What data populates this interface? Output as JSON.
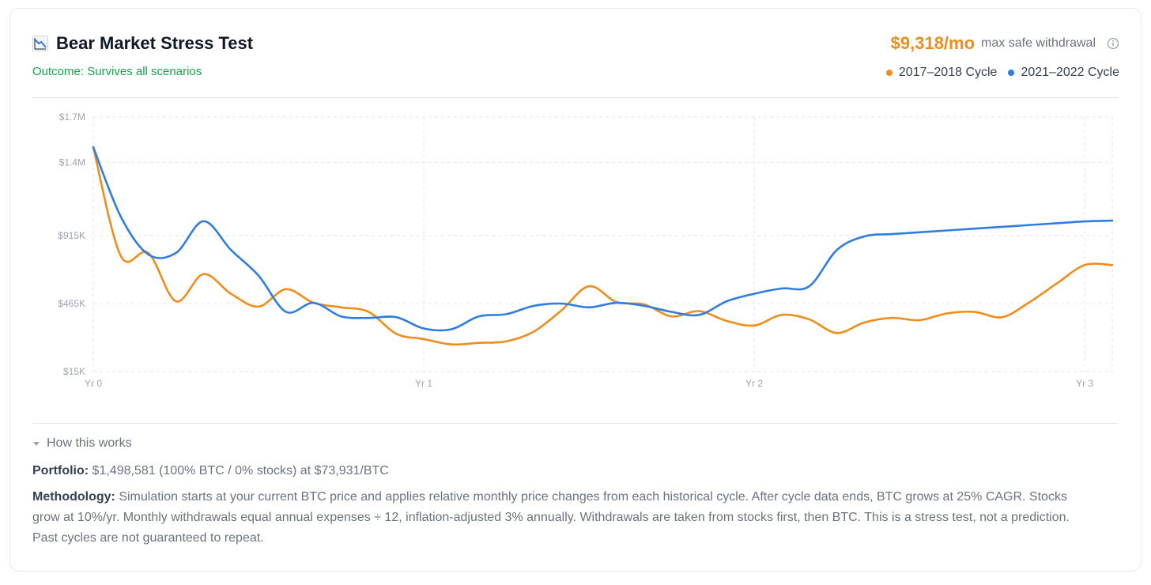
{
  "header": {
    "title": "Bear Market Stress Test",
    "outcome": "Outcome: Survives all scenarios",
    "amount": "$9,318/mo",
    "amount_label": "max safe withdrawal"
  },
  "colors": {
    "orange": "#f08c1a",
    "blue": "#2f7de1",
    "green": "#16a34a"
  },
  "icons": {
    "title": "chart-decreasing-icon",
    "info": "info-icon",
    "caret": "caret-down-icon"
  },
  "legend": [
    {
      "label": "2017–2018 Cycle",
      "color": "#f08c1a"
    },
    {
      "label": "2021–2022 Cycle",
      "color": "#2f7de1"
    }
  ],
  "chart_data": {
    "type": "line",
    "x_ticks": [
      {
        "value": 0,
        "label": "Yr 0"
      },
      {
        "value": 12,
        "label": "Yr 1"
      },
      {
        "value": 24,
        "label": "Yr 2"
      },
      {
        "value": 36,
        "label": "Yr 3"
      }
    ],
    "y_ticks": [
      {
        "value": 15000,
        "label": "$15K"
      },
      {
        "value": 465000,
        "label": "$465K"
      },
      {
        "value": 915000,
        "label": "$915K"
      },
      {
        "value": 1400000,
        "label": "$1.4M"
      },
      {
        "value": 1700000,
        "label": "$1.7M"
      }
    ],
    "xlim": [
      0,
      37
    ],
    "ylim": [
      15000,
      1700000
    ],
    "grid": true,
    "legend_position": "top-right",
    "series": [
      {
        "name": "2017–2018 Cycle",
        "color": "#f08c1a",
        "points": [
          [
            0,
            1500000
          ],
          [
            1,
            780000
          ],
          [
            2,
            800000
          ],
          [
            3,
            480000
          ],
          [
            4,
            660000
          ],
          [
            5,
            530000
          ],
          [
            6,
            445000
          ],
          [
            7,
            560000
          ],
          [
            8,
            470000
          ],
          [
            9,
            440000
          ],
          [
            10,
            410000
          ],
          [
            11,
            265000
          ],
          [
            12,
            230000
          ],
          [
            13,
            195000
          ],
          [
            14,
            205000
          ],
          [
            15,
            215000
          ],
          [
            16,
            280000
          ],
          [
            17,
            420000
          ],
          [
            18,
            580000
          ],
          [
            19,
            475000
          ],
          [
            20,
            460000
          ],
          [
            21,
            380000
          ],
          [
            22,
            415000
          ],
          [
            23,
            350000
          ],
          [
            24,
            320000
          ],
          [
            25,
            390000
          ],
          [
            26,
            360000
          ],
          [
            27,
            270000
          ],
          [
            28,
            340000
          ],
          [
            29,
            370000
          ],
          [
            30,
            355000
          ],
          [
            31,
            400000
          ],
          [
            32,
            410000
          ],
          [
            33,
            375000
          ],
          [
            34,
            475000
          ],
          [
            35,
            600000
          ],
          [
            36,
            720000
          ],
          [
            37,
            720000
          ]
        ]
      },
      {
        "name": "2021–2022 Cycle",
        "color": "#2f7de1",
        "points": [
          [
            0,
            1500000
          ],
          [
            1,
            1040000
          ],
          [
            2,
            790000
          ],
          [
            3,
            800000
          ],
          [
            4,
            1010000
          ],
          [
            5,
            820000
          ],
          [
            6,
            650000
          ],
          [
            7,
            410000
          ],
          [
            8,
            470000
          ],
          [
            9,
            380000
          ],
          [
            10,
            370000
          ],
          [
            11,
            375000
          ],
          [
            12,
            300000
          ],
          [
            13,
            295000
          ],
          [
            14,
            380000
          ],
          [
            15,
            395000
          ],
          [
            16,
            450000
          ],
          [
            17,
            465000
          ],
          [
            18,
            440000
          ],
          [
            19,
            470000
          ],
          [
            20,
            450000
          ],
          [
            21,
            410000
          ],
          [
            22,
            390000
          ],
          [
            23,
            480000
          ],
          [
            24,
            530000
          ],
          [
            25,
            565000
          ],
          [
            26,
            580000
          ],
          [
            27,
            820000
          ],
          [
            28,
            910000
          ],
          [
            29,
            925000
          ],
          [
            30,
            937000
          ],
          [
            31,
            949000
          ],
          [
            32,
            961000
          ],
          [
            33,
            973000
          ],
          [
            34,
            985000
          ],
          [
            35,
            997000
          ],
          [
            36,
            1009000
          ],
          [
            37,
            1014000
          ]
        ]
      }
    ]
  },
  "how": {
    "label": "How this works"
  },
  "portfolio": {
    "label": "Portfolio:",
    "text": "$1,498,581 (100% BTC / 0% stocks) at $73,931/BTC"
  },
  "methodology": {
    "label": "Methodology:",
    "text": "Simulation starts at your current BTC price and applies relative monthly price changes from each historical cycle. After cycle data ends, BTC grows at 25% CAGR. Stocks grow at 10%/yr. Monthly withdrawals equal annual expenses ÷ 12, inflation-adjusted 3% annually. Withdrawals are taken from stocks first, then BTC. This is a stress test, not a prediction. Past cycles are not guaranteed to repeat."
  }
}
